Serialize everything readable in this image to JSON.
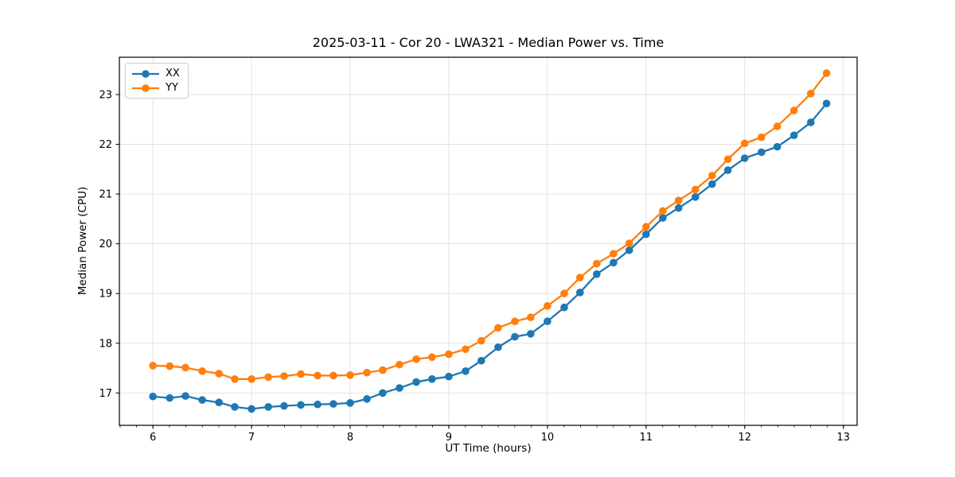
{
  "chart_data": {
    "type": "line",
    "title": "2025-03-11 - Cor 20 - LWA321 - Median Power vs. Time",
    "xlabel": "UT Time (hours)",
    "ylabel": "Median Power (CPU)",
    "xlim": [
      5.66,
      13.14
    ],
    "ylim": [
      16.35,
      23.75
    ],
    "xticks": [
      6,
      7,
      8,
      9,
      10,
      11,
      12,
      13
    ],
    "yticks": [
      17,
      18,
      19,
      20,
      21,
      22,
      23
    ],
    "x_minor_tick_step": 0.1667,
    "grid": true,
    "grid_color": "#e0e0e0",
    "legend_position": "upper-left",
    "x": [
      6.0,
      6.17,
      6.33,
      6.5,
      6.67,
      6.83,
      7.0,
      7.17,
      7.33,
      7.5,
      7.67,
      7.83,
      8.0,
      8.17,
      8.33,
      8.5,
      8.67,
      8.83,
      9.0,
      9.17,
      9.33,
      9.5,
      9.67,
      9.83,
      10.0,
      10.17,
      10.33,
      10.5,
      10.67,
      10.83,
      11.0,
      11.17,
      11.33,
      11.5,
      11.67,
      11.83,
      12.0,
      12.17,
      12.33,
      12.5,
      12.67,
      12.83
    ],
    "series": [
      {
        "name": "XX",
        "color": "#1f77b4",
        "values": [
          16.93,
          16.9,
          16.94,
          16.86,
          16.81,
          16.72,
          16.68,
          16.72,
          16.74,
          16.76,
          16.77,
          16.78,
          16.8,
          16.88,
          17.0,
          17.1,
          17.22,
          17.28,
          17.33,
          17.44,
          17.65,
          17.92,
          18.13,
          18.19,
          18.44,
          18.72,
          19.02,
          19.39,
          19.62,
          19.87,
          20.19,
          20.52,
          20.72,
          20.94,
          21.2,
          21.48,
          21.72,
          21.84,
          21.95,
          22.18,
          22.44,
          22.82
        ]
      },
      {
        "name": "YY",
        "color": "#ff7f0e",
        "values": [
          17.55,
          17.54,
          17.51,
          17.44,
          17.39,
          17.28,
          17.28,
          17.32,
          17.34,
          17.38,
          17.35,
          17.35,
          17.36,
          17.41,
          17.46,
          17.57,
          17.68,
          17.72,
          17.78,
          17.88,
          18.05,
          18.31,
          18.44,
          18.52,
          18.75,
          19.0,
          19.32,
          19.6,
          19.8,
          20.01,
          20.34,
          20.66,
          20.87,
          21.09,
          21.37,
          21.7,
          22.02,
          22.14,
          22.36,
          22.68,
          23.02,
          23.43
        ]
      }
    ]
  }
}
